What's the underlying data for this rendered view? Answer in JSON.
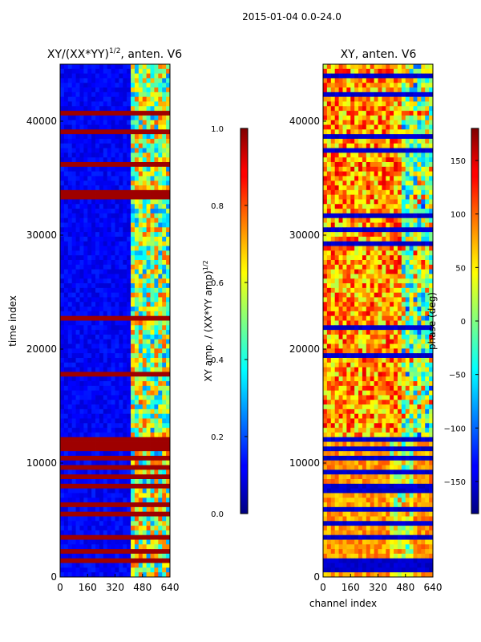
{
  "suptitle": "2015-01-04 0.0-24.0",
  "chart_data": [
    {
      "type": "heatmap",
      "title_main": "XY/(XX*YY)",
      "title_sup": "1/2",
      "title_rest": ", anten. V6",
      "xlabel": "",
      "ylabel": "time index",
      "xlim": [
        0,
        640
      ],
      "ylim": [
        0,
        45000
      ],
      "xticks": [
        0,
        160,
        320,
        480,
        640
      ],
      "yticks": [
        0,
        10000,
        20000,
        30000,
        40000
      ],
      "colorbar": {
        "label_main": "XY amp. / (XX*YY amp)",
        "label_sup": "1/2",
        "range": [
          0.0,
          1.0
        ],
        "ticks": [
          "0.0",
          "0.2",
          "0.4",
          "0.6",
          "0.8",
          "1.0"
        ],
        "colormap": "jet"
      }
    },
    {
      "type": "heatmap",
      "title_main": "XY, anten. V6",
      "title_sup": "",
      "title_rest": "",
      "xlabel": "channel index",
      "ylabel": "",
      "xlim": [
        0,
        640
      ],
      "ylim": [
        0,
        45000
      ],
      "xticks": [
        0,
        160,
        320,
        480,
        640
      ],
      "yticks": [
        0,
        10000,
        20000,
        30000,
        40000
      ],
      "colorbar": {
        "label_main": "phase (deg)",
        "label_sup": "",
        "range": [
          -180,
          180
        ],
        "ticks": [
          "−150",
          "−100",
          "−50",
          "0",
          "50",
          "100",
          "150"
        ],
        "colormap": "jet"
      }
    }
  ],
  "colors": {
    "jet_low": "#00007f",
    "jet_high": "#7f0000",
    "axis": "#000000"
  }
}
